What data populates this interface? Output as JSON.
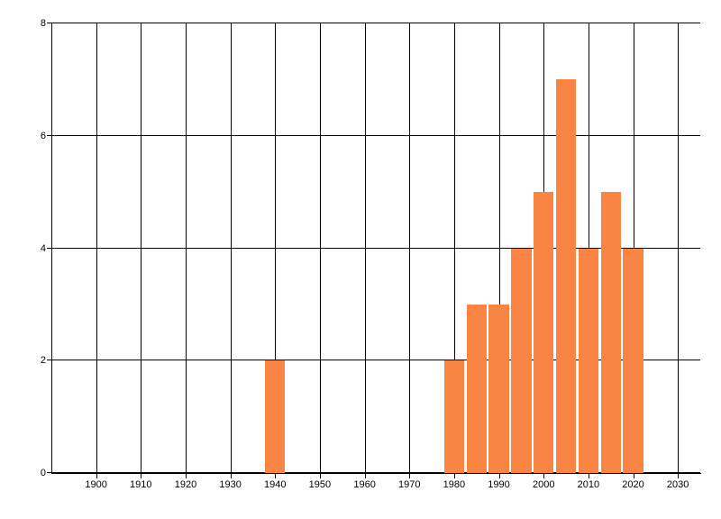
{
  "chart_data": {
    "type": "bar",
    "categories": [
      1940,
      1980,
      1985,
      1990,
      1995,
      2000,
      2005,
      2010,
      2015,
      2020
    ],
    "values": [
      2,
      2,
      3,
      3,
      4,
      5,
      7,
      4,
      5,
      4
    ],
    "xlim": [
      1890,
      2035
    ],
    "ylim": [
      0,
      8
    ],
    "x_tick_values": [
      1900,
      1910,
      1920,
      1930,
      1940,
      1950,
      1960,
      1970,
      1980,
      1990,
      2000,
      2010,
      2020,
      2030
    ],
    "x_tick_labels": [
      "1900",
      "1910",
      "1920",
      "1930",
      "1940",
      "1950",
      "1960",
      "1970",
      "1980",
      "1990",
      "2000",
      "2010",
      "2020",
      "2030"
    ],
    "y_tick_values": [
      0,
      2,
      4,
      6,
      8
    ],
    "y_tick_labels": [
      "0",
      "2",
      "4",
      "6",
      "8"
    ],
    "bar_width_years": 4.5,
    "bar_color": "#fa8444",
    "grid": true,
    "grid_color": "#000000",
    "axis_color": "#000000",
    "text_color": "#000000",
    "background_color": "#ffffff",
    "legend": "none"
  }
}
